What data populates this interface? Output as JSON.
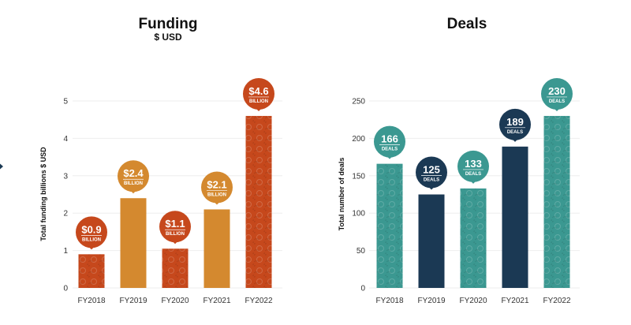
{
  "colors": {
    "rust": "#C6481C",
    "gold": "#D4892F",
    "teal": "#3B9891",
    "navy": "#1B3954",
    "grid": "#EEEEEE",
    "nav": "#1B3954"
  },
  "chart_data": [
    {
      "type": "bar",
      "title": "Funding",
      "subtitle": "$ USD",
      "ylabel": "Total funding billions $ USD",
      "xlabel": "",
      "ylim": [
        0,
        5
      ],
      "yticks": [
        0,
        1,
        2,
        3,
        4,
        5
      ],
      "grid": true,
      "categories": [
        "FY2018",
        "FY2019",
        "FY2020",
        "FY2021",
        "FY2022"
      ],
      "values": [
        0.9,
        2.4,
        1.05,
        2.1,
        4.6
      ],
      "labels": [
        "$0.9",
        "$2.4",
        "$1.1",
        "$2.1",
        "$4.6"
      ],
      "unit_label": "BILLION",
      "bar_colors": [
        "rust",
        "gold",
        "rust",
        "gold",
        "rust"
      ],
      "patterned": [
        true,
        false,
        true,
        false,
        true
      ]
    },
    {
      "type": "bar",
      "title": "Deals",
      "subtitle": "",
      "ylabel": "Total number of deals",
      "xlabel": "",
      "ylim": [
        0,
        250
      ],
      "yticks": [
        0,
        50,
        100,
        150,
        200,
        250
      ],
      "grid": true,
      "categories": [
        "FY2018",
        "FY2019",
        "FY2020",
        "FY2021",
        "FY2022"
      ],
      "values": [
        166,
        125,
        133,
        189,
        230
      ],
      "labels": [
        "166",
        "125",
        "133",
        "189",
        "230"
      ],
      "unit_label": "DEALS",
      "bar_colors": [
        "teal",
        "navy",
        "teal",
        "navy",
        "teal"
      ],
      "patterned": [
        true,
        false,
        true,
        false,
        true
      ]
    }
  ]
}
